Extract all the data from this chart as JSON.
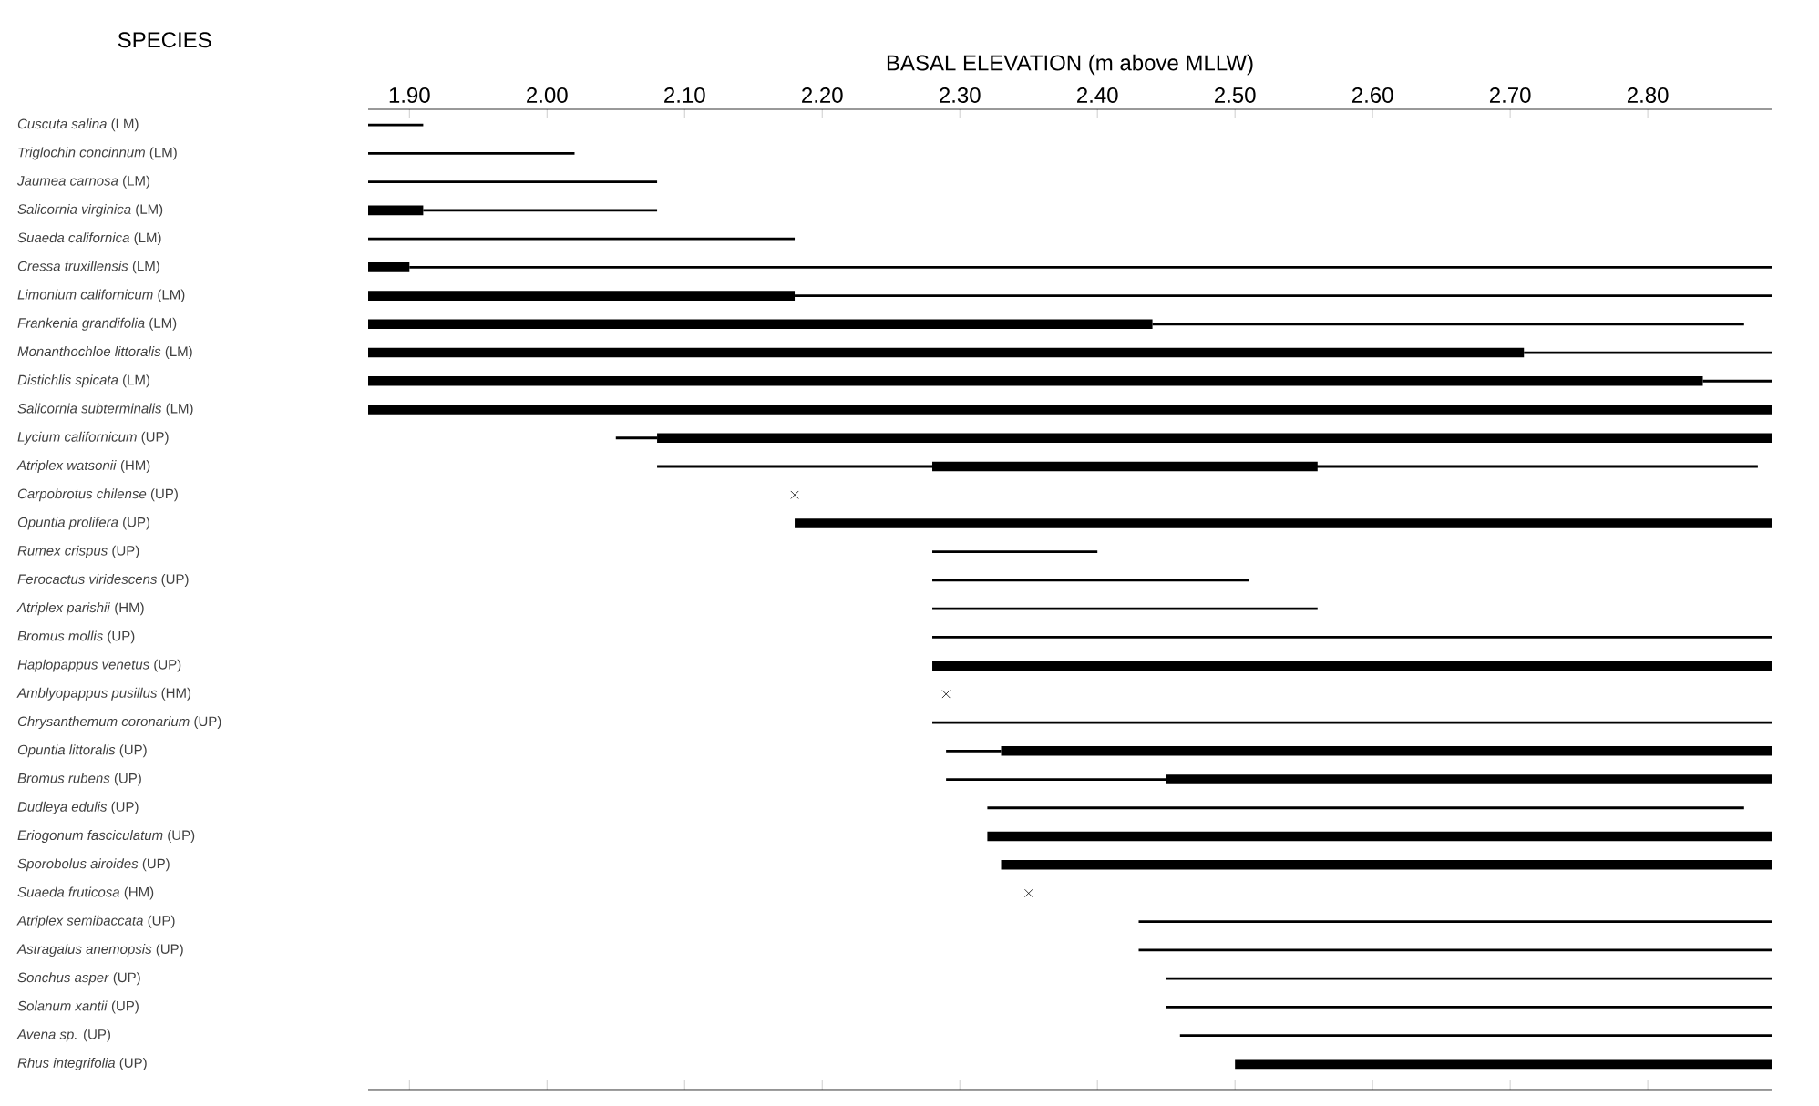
{
  "chart_data": {
    "type": "bar",
    "orientation": "horizontal",
    "xlabel": "BASAL ELEVATION (m above MLLW)",
    "ylabel": "SPECIES",
    "categories": [
      "*Cuscuta salina* (LM)",
      "*Triglochin concinnum* (LM)",
      "*Jaumea carnosa* (LM)",
      "*Salicornia virginica* (LM)",
      "*Suaeda californica* (LM)",
      "*Cressa truxillensis* (LM)",
      "*Limonium californicum* (LM)",
      "*Frankenia grandifolia* (LM)",
      "*Monanthochloe littoralis* (LM)",
      "*Distichlis spicata* (LM)",
      "*Salicornia subterminalis* (LM)",
      "*Lycium californicum* (UP)",
      "*Atriplex watsonii* (HM)",
      "*Carpobrotus chilense* (UP)",
      "*Opuntia prolifera* (UP)",
      "*Rumex crispus* (UP)",
      "*Ferocactus viridescens* (UP)",
      "*Atriplex parishii* (HM)",
      "*Bromus mollis* (UP)",
      "*Haplopappus venetus* (UP)",
      "*Amblyopappus pusillus* (HM)",
      "*Chrysanthemum coronarium* (UP)",
      "*Opuntia littoralis* (UP)",
      "*Bromus rubens* (UP)",
      "*Dudleya edulis* (UP)",
      "*Eriogonum fasciculatum* (UP)",
      "*Sporobolus airoides* (UP)",
      "*Suaeda fruticosa* (HM)",
      "*Atriplex semibaccata* (UP)",
      "*Astragalus anemopsis* (UP)",
      "*Sonchus asper* (UP)",
      "*Solanum xantii* (UP)",
      "*Avena sp.* (UP)",
      "*Rhus integrifolia* (UP)"
    ],
    "series": [
      {
        "color": "#000000",
        "base": [
          1.87,
          1.87,
          1.87,
          1.91,
          1.87,
          1.9,
          2.18,
          2.44,
          2.71,
          2.84,
          null,
          2.05,
          2.08,
          null,
          null,
          2.28,
          2.28,
          2.28,
          2.28,
          null,
          null,
          2.28,
          2.29,
          2.29,
          2.32,
          null,
          null,
          null,
          2.43,
          2.43,
          2.45,
          2.45,
          2.46,
          null
        ],
        "values": [
          0.04,
          0.15,
          0.21,
          0.17,
          0.31,
          0.99,
          0.71,
          0.43,
          0.18,
          0.05,
          null,
          0.03,
          0.8,
          null,
          null,
          0.12,
          0.23,
          0.28,
          0.61,
          null,
          null,
          0.61,
          0.04,
          0.16,
          0.55,
          null,
          null,
          null,
          0.46,
          0.46,
          0.44,
          0.44,
          0.43,
          null
        ]
      },
      {
        "color": "#000000",
        "base": [
          null,
          null,
          null,
          1.87,
          null,
          1.87,
          1.87,
          1.87,
          1.87,
          1.87,
          1.87,
          2.08,
          2.28,
          null,
          2.18,
          null,
          null,
          null,
          null,
          2.28,
          null,
          null,
          2.33,
          2.45,
          null,
          2.32,
          2.33,
          null,
          null,
          null,
          null,
          null,
          null,
          2.5
        ],
        "values": [
          null,
          null,
          null,
          0.04,
          null,
          0.03,
          0.31,
          0.57,
          0.84,
          0.97,
          1.02,
          0.81,
          0.28,
          null,
          0.71,
          null,
          null,
          null,
          null,
          0.61,
          null,
          null,
          0.56,
          0.44,
          null,
          0.57,
          0.56,
          null,
          null,
          null,
          null,
          null,
          null,
          0.39
        ]
      },
      {
        "type": "scatter",
        "color": "#000000",
        "marker": "cross",
        "values": [
          null,
          null,
          null,
          null,
          null,
          null,
          null,
          null,
          null,
          null,
          null,
          null,
          null,
          2.18,
          null,
          null,
          null,
          null,
          null,
          null,
          2.29,
          null,
          null,
          null,
          null,
          null,
          null,
          2.35,
          null,
          null,
          null,
          null,
          null,
          null
        ]
      }
    ],
    "xlim": [
      1.87,
      2.89
    ],
    "xticks": [
      {
        "value": 1.9,
        "label": "1.90"
      },
      {
        "value": 2.0,
        "label": "2.00"
      },
      {
        "value": 2.1,
        "label": "2.10"
      },
      {
        "value": 2.2,
        "label": "2.20"
      },
      {
        "value": 2.3,
        "label": "2.30"
      },
      {
        "value": 2.4,
        "label": "2.40"
      },
      {
        "value": 2.5,
        "label": "2.50"
      },
      {
        "value": 2.6,
        "label": "2.60"
      },
      {
        "value": 2.7,
        "label": "2.70"
      },
      {
        "value": 2.8,
        "label": "2.80"
      }
    ],
    "grid": false
  }
}
